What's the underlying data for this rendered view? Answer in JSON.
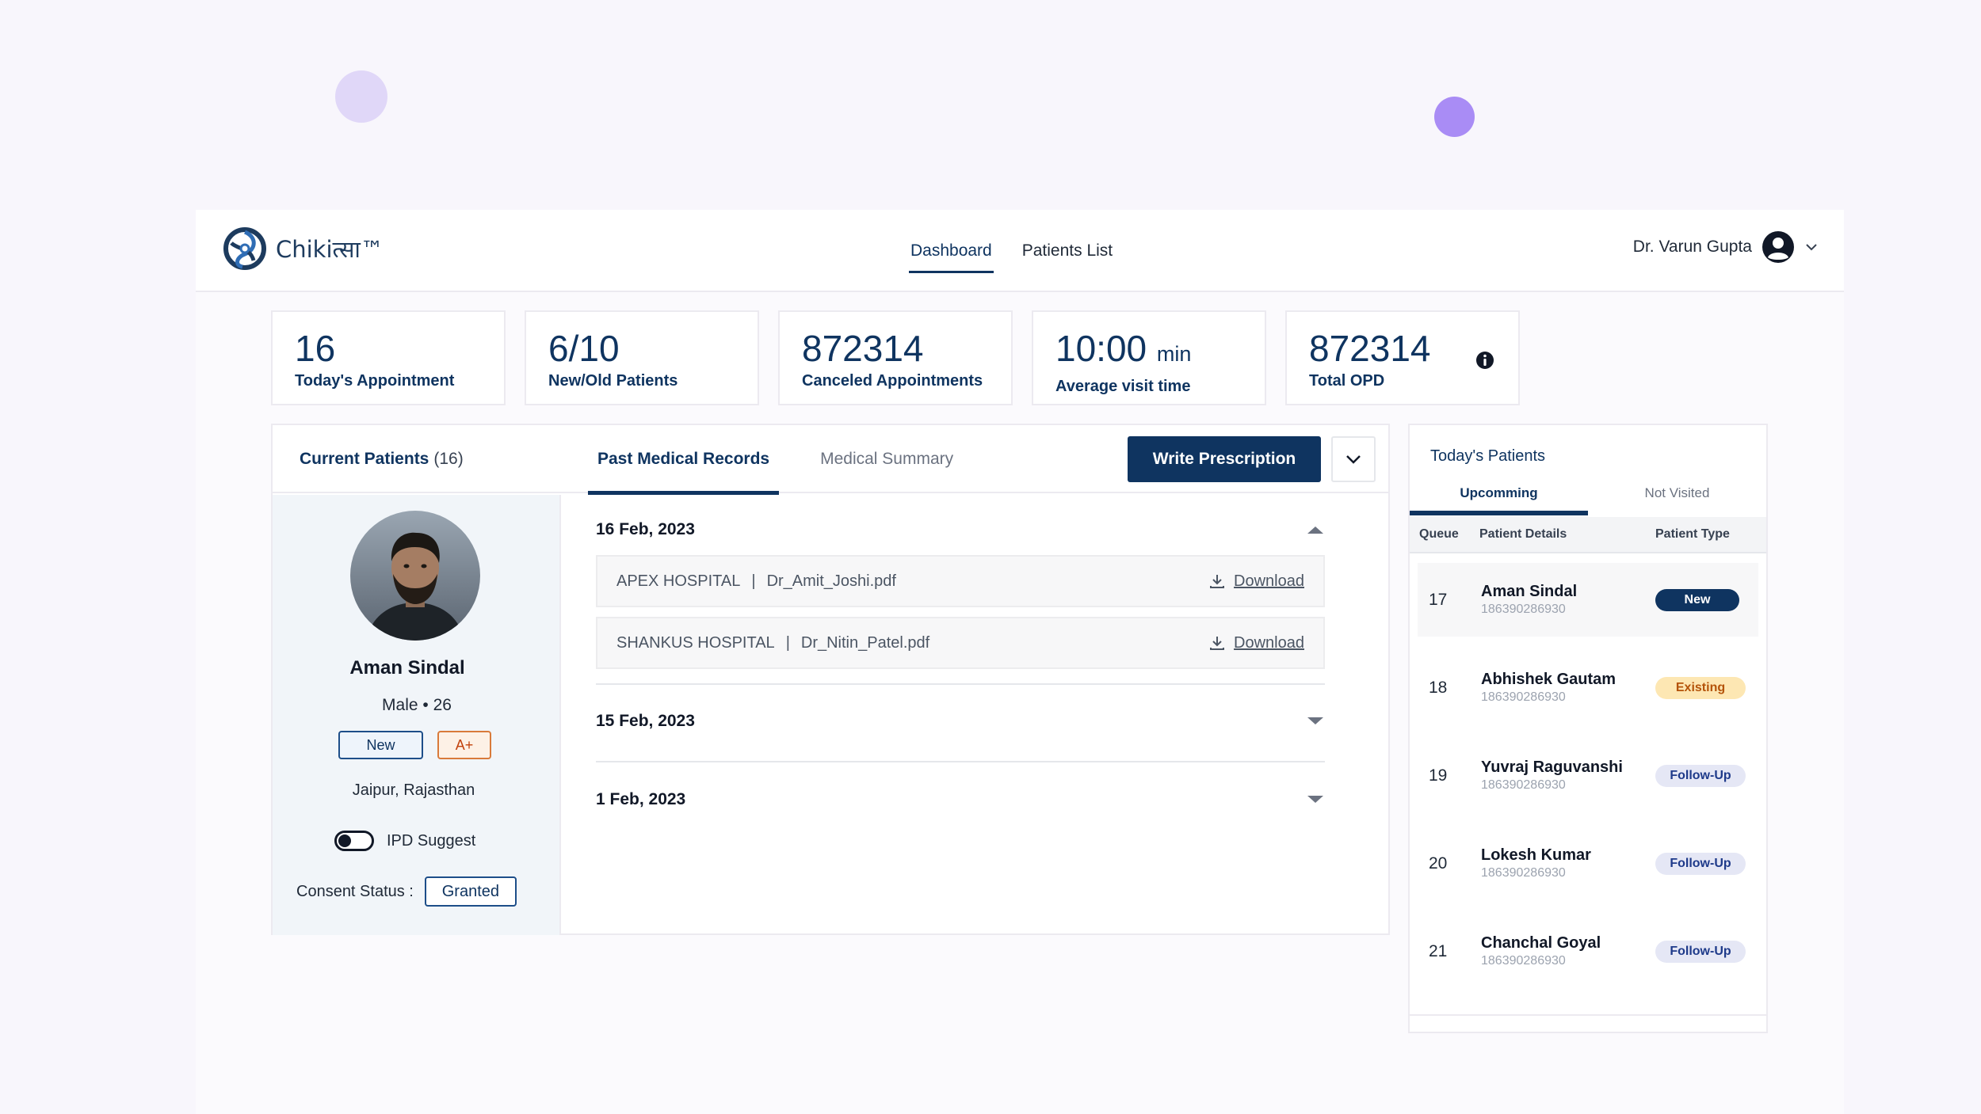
{
  "brand": {
    "name": "Chikitsa",
    "logo_text": "Chikiत्सा™"
  },
  "nav": {
    "items": [
      {
        "label": "Dashboard",
        "active": true
      },
      {
        "label": "Patients List",
        "active": false
      }
    ]
  },
  "user": {
    "name": "Dr. Varun Gupta"
  },
  "stats": [
    {
      "value": "16",
      "unit": "",
      "label": "Today's Appointment"
    },
    {
      "value": "6/10",
      "unit": "",
      "label": "New/Old Patients"
    },
    {
      "value": "872314",
      "unit": "",
      "label": "Canceled Appointments"
    },
    {
      "value": "10:00",
      "unit": "min",
      "label": "Average visit time"
    },
    {
      "value": "872314",
      "unit": "",
      "label": "Total OPD"
    }
  ],
  "current_patients": {
    "label": "Current Patients",
    "count": "(16)"
  },
  "record_tabs": [
    {
      "label": "Past Medical Records",
      "active": true
    },
    {
      "label": "Medical Summary",
      "active": false
    }
  ],
  "actions": {
    "write_prescription": "Write Prescription"
  },
  "patient": {
    "name": "Aman Sindal",
    "meta": "Male • 26",
    "type_badge": "New",
    "blood_group": "A+",
    "location": "Jaipur, Rajasthan",
    "ipd_label": "IPD Suggest",
    "consent_label": "Consent Status :",
    "consent_value": "Granted"
  },
  "records": [
    {
      "date": "16 Feb, 2023",
      "expanded": true,
      "files": [
        {
          "hospital": "APEX HOSPITAL",
          "file": "Dr_Amit_Joshi.pdf",
          "action": "Download"
        },
        {
          "hospital": "SHANKUS HOSPITAL",
          "file": "Dr_Nitin_Patel.pdf",
          "action": "Download"
        }
      ]
    },
    {
      "date": "15 Feb, 2023",
      "expanded": false,
      "files": []
    },
    {
      "date": "1 Feb, 2023",
      "expanded": false,
      "files": []
    }
  ],
  "todays_patients": {
    "title": "Today's Patients",
    "tabs": [
      {
        "label": "Upcomming",
        "active": true
      },
      {
        "label": "Not Visited",
        "active": false
      }
    ],
    "columns": [
      "Queue",
      "Patient Details",
      "Patient Type"
    ],
    "rows": [
      {
        "queue": "17",
        "name": "Aman Sindal",
        "id": "186390286930",
        "type": "New"
      },
      {
        "queue": "18",
        "name": "Abhishek Gautam",
        "id": "186390286930",
        "type": "Existing"
      },
      {
        "queue": "19",
        "name": "Yuvraj Raguvanshi",
        "id": "186390286930",
        "type": "Follow-Up"
      },
      {
        "queue": "20",
        "name": "Lokesh Kumar",
        "id": "186390286930",
        "type": "Follow-Up"
      },
      {
        "queue": "21",
        "name": "Chanchal Goyal",
        "id": "186390286930",
        "type": "Follow-Up"
      }
    ]
  },
  "colors": {
    "primary": "#0f3460",
    "existing_badge": "#fde7b3",
    "followup_badge": "#e5e7f5",
    "accent_blob": "#a98cf5"
  }
}
